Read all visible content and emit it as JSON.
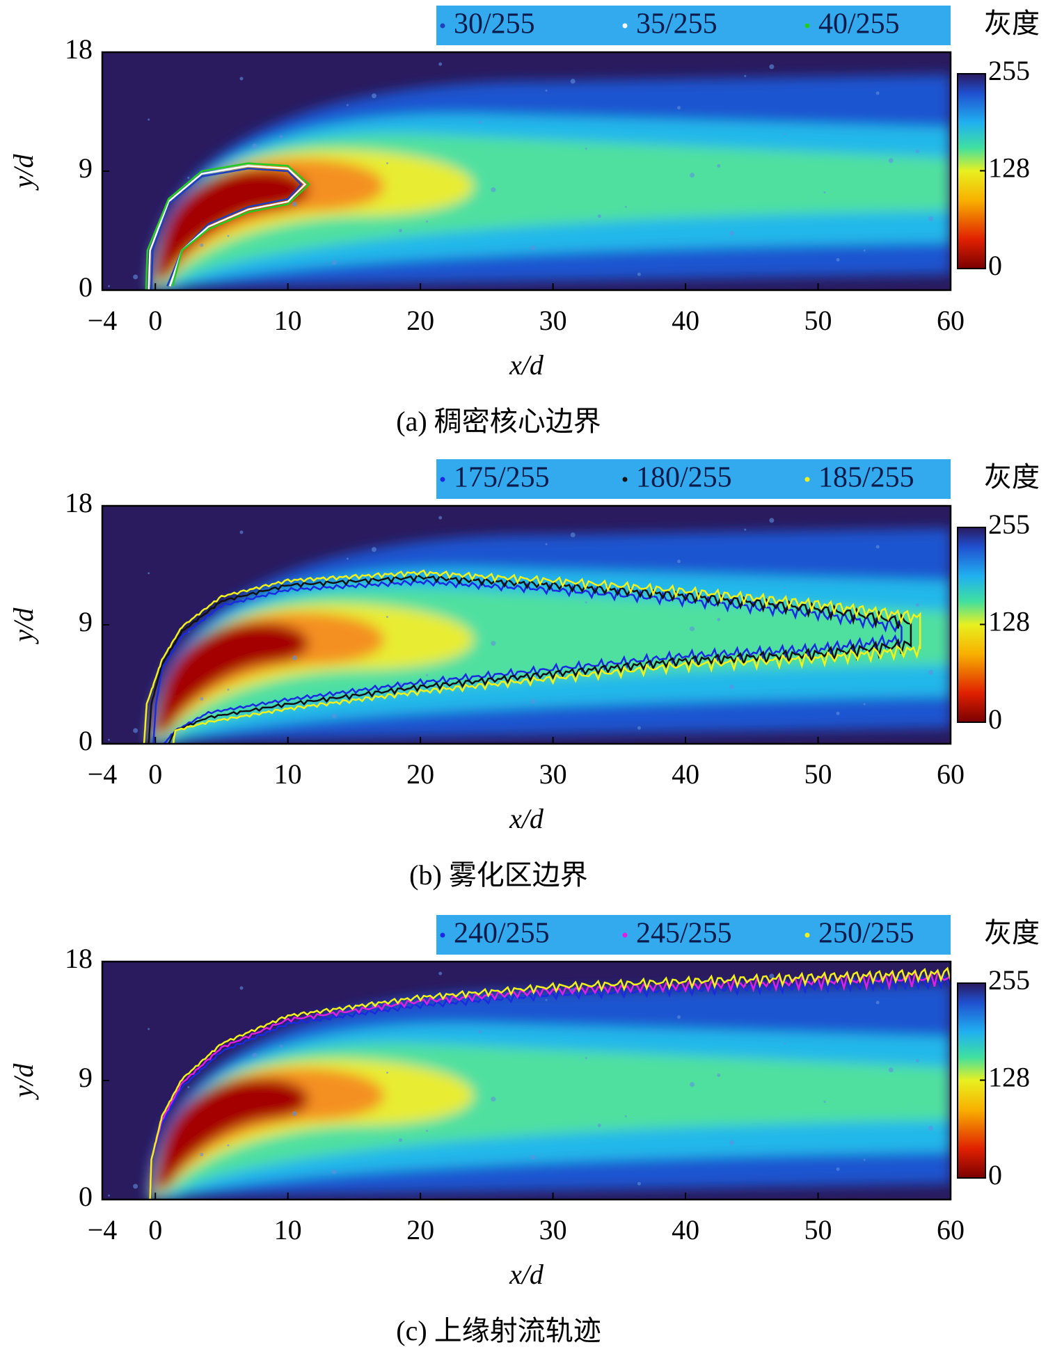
{
  "chart_data": [
    {
      "type": "heatmap",
      "caption": "(a) 稠密核心边界",
      "xlabel": "x/d",
      "ylabel": "y/d",
      "xlim": [
        -4,
        60
      ],
      "ylim": [
        0,
        18
      ],
      "xticks": [
        {
          "value": -4,
          "label": "−4"
        },
        0,
        10,
        20,
        30,
        40,
        50,
        60
      ],
      "yticks": [
        0,
        9,
        18
      ],
      "colorbar_label": "灰度",
      "colorbar_lim": [
        0,
        255
      ],
      "colorbar_ticks": [
        0,
        128,
        255
      ],
      "series": [
        {
          "name": "30/255",
          "color": "#1f3fbf"
        },
        {
          "name": "35/255",
          "color": "#ffffff"
        },
        {
          "name": "40/255",
          "color": "#22cc22"
        }
      ]
    },
    {
      "type": "heatmap",
      "caption": "(b) 雾化区边界",
      "xlabel": "x/d",
      "ylabel": "y/d",
      "xlim": [
        -4,
        60
      ],
      "ylim": [
        0,
        18
      ],
      "xticks": [
        {
          "value": -4,
          "label": "−4"
        },
        0,
        10,
        20,
        30,
        40,
        50,
        60
      ],
      "yticks": [
        0,
        9,
        18
      ],
      "colorbar_label": "灰度",
      "colorbar_lim": [
        0,
        255
      ],
      "colorbar_ticks": [
        0,
        128,
        255
      ],
      "series": [
        {
          "name": "175/255",
          "color": "#1a2adf"
        },
        {
          "name": "180/255",
          "color": "#111111"
        },
        {
          "name": "185/255",
          "color": "#f2f21a"
        }
      ]
    },
    {
      "type": "heatmap",
      "caption": "(c) 上缘射流轨迹",
      "xlabel": "x/d",
      "ylabel": "y/d",
      "xlim": [
        -4,
        60
      ],
      "ylim": [
        0,
        18
      ],
      "xticks": [
        {
          "value": -4,
          "label": "−4"
        },
        0,
        10,
        20,
        30,
        40,
        50,
        60
      ],
      "yticks": [
        0,
        9,
        18
      ],
      "colorbar_label": "灰度",
      "colorbar_lim": [
        0,
        255
      ],
      "colorbar_ticks": [
        0,
        128,
        255
      ],
      "series": [
        {
          "name": "240/255",
          "color": "#1a2adf"
        },
        {
          "name": "245/255",
          "color": "#e020e0"
        },
        {
          "name": "250/255",
          "color": "#f2f21a"
        }
      ]
    }
  ]
}
